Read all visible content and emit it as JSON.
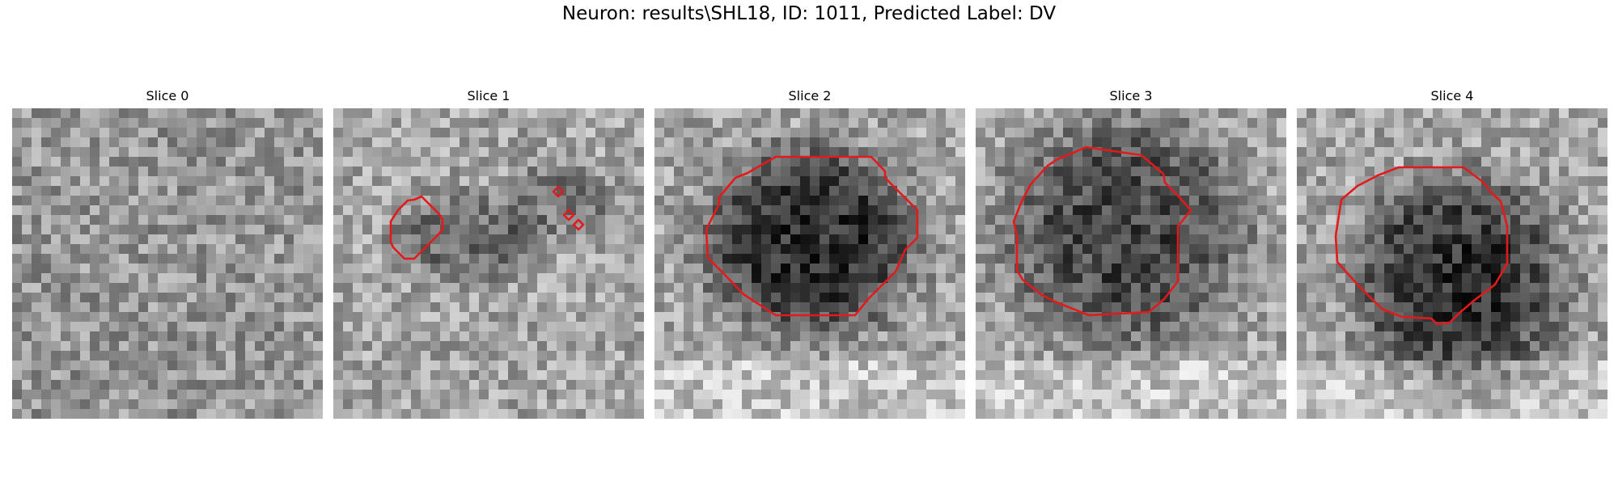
{
  "figure": {
    "suptitle": "Neuron: results\\SHL18, ID: 1011, Predicted Label: DV",
    "contour_color": "#e31a1c"
  },
  "panels": [
    {
      "title": "Slice 0"
    },
    {
      "title": "Slice 1"
    },
    {
      "title": "Slice 2"
    },
    {
      "title": "Slice 3"
    },
    {
      "title": "Slice 4"
    }
  ]
}
